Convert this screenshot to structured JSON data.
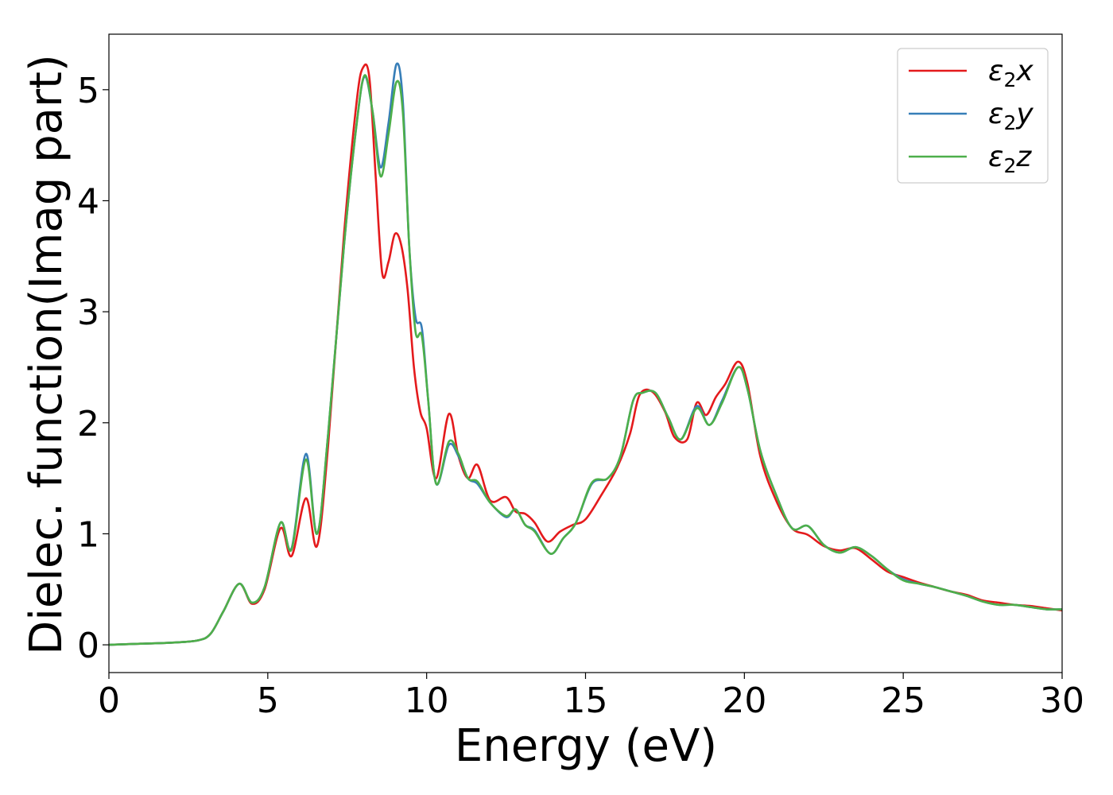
{
  "chart_data": {
    "type": "line",
    "xlabel": "Energy (eV)",
    "ylabel": "Dielec. function(Imag part)",
    "xlim": [
      0,
      30
    ],
    "ylim": [
      -0.25,
      5.5
    ],
    "xticks": [
      "0",
      "5",
      "10",
      "15",
      "20",
      "25",
      "30"
    ],
    "yticks": [
      "0",
      "1",
      "2",
      "3",
      "4",
      "5"
    ],
    "grid": false,
    "legend_position": "top-right",
    "legend_labels": [
      {
        "base": "ε",
        "sub": "2",
        "tail": "x"
      },
      {
        "base": "ε",
        "sub": "2",
        "tail": "y"
      },
      {
        "base": "ε",
        "sub": "2",
        "tail": "z"
      }
    ],
    "series": [
      {
        "name": "ε2x",
        "color": "#e41a1c",
        "x": [
          0,
          1,
          2,
          2.8,
          3.2,
          3.6,
          4.1,
          4.5,
          4.9,
          5.4,
          5.75,
          6.2,
          6.55,
          6.9,
          7.4,
          7.8,
          8.0,
          8.2,
          8.4,
          8.6,
          8.8,
          9.0,
          9.2,
          9.4,
          9.6,
          9.8,
          10.0,
          10.3,
          10.7,
          11.0,
          11.3,
          11.6,
          12.0,
          12.5,
          12.8,
          13.1,
          13.4,
          13.8,
          14.2,
          14.6,
          15.0,
          15.5,
          16.0,
          16.4,
          16.7,
          17.1,
          17.5,
          17.8,
          18.2,
          18.5,
          18.8,
          19.1,
          19.4,
          19.8,
          20.1,
          20.5,
          21.0,
          21.5,
          22.0,
          22.5,
          23.0,
          23.5,
          24.0,
          24.5,
          25.0,
          25.5,
          26.0,
          26.5,
          27.0,
          27.5,
          28.0,
          28.5,
          29.0,
          29.5,
          30.0
        ],
        "y": [
          0.0,
          0.01,
          0.02,
          0.04,
          0.1,
          0.3,
          0.55,
          0.37,
          0.5,
          1.05,
          0.8,
          1.32,
          0.89,
          1.8,
          3.7,
          4.9,
          5.2,
          5.1,
          4.2,
          3.35,
          3.45,
          3.7,
          3.6,
          3.2,
          2.5,
          2.1,
          1.95,
          1.5,
          2.08,
          1.7,
          1.5,
          1.62,
          1.3,
          1.33,
          1.2,
          1.18,
          1.1,
          0.93,
          1.02,
          1.08,
          1.13,
          1.35,
          1.6,
          1.9,
          2.25,
          2.28,
          2.1,
          1.87,
          1.85,
          2.18,
          2.07,
          2.23,
          2.35,
          2.55,
          2.35,
          1.7,
          1.3,
          1.05,
          0.99,
          0.89,
          0.85,
          0.87,
          0.77,
          0.66,
          0.61,
          0.56,
          0.52,
          0.48,
          0.45,
          0.4,
          0.38,
          0.36,
          0.35,
          0.33,
          0.31
        ]
      },
      {
        "name": "ε2y",
        "color": "#377eb8",
        "x": [
          0,
          1,
          2,
          2.8,
          3.2,
          3.6,
          4.1,
          4.5,
          4.9,
          5.4,
          5.75,
          6.2,
          6.55,
          6.9,
          7.4,
          7.8,
          8.05,
          8.3,
          8.55,
          8.8,
          9.05,
          9.25,
          9.45,
          9.65,
          9.85,
          10.05,
          10.3,
          10.7,
          11.0,
          11.3,
          11.6,
          12.0,
          12.5,
          12.8,
          13.1,
          13.4,
          13.9,
          14.3,
          14.7,
          15.2,
          15.7,
          16.1,
          16.5,
          16.8,
          17.2,
          17.6,
          18.0,
          18.5,
          18.9,
          19.3,
          19.8,
          20.1,
          20.5,
          21.0,
          21.5,
          22.0,
          22.5,
          23.0,
          23.5,
          24.0,
          24.5,
          25.0,
          25.5,
          26.0,
          26.5,
          27.0,
          27.5,
          28.0,
          28.5,
          29.0,
          29.5,
          30.0
        ],
        "y": [
          0.0,
          0.01,
          0.02,
          0.04,
          0.1,
          0.3,
          0.55,
          0.38,
          0.52,
          1.1,
          0.87,
          1.72,
          1.0,
          1.9,
          3.6,
          4.7,
          5.12,
          4.8,
          4.3,
          4.7,
          5.23,
          4.9,
          3.6,
          2.95,
          2.85,
          2.2,
          1.45,
          1.8,
          1.7,
          1.5,
          1.45,
          1.28,
          1.15,
          1.22,
          1.08,
          1.03,
          0.82,
          0.96,
          1.1,
          1.45,
          1.5,
          1.7,
          2.2,
          2.27,
          2.27,
          2.05,
          1.85,
          2.15,
          1.98,
          2.2,
          2.5,
          2.3,
          1.75,
          1.35,
          1.05,
          1.07,
          0.9,
          0.83,
          0.88,
          0.8,
          0.68,
          0.59,
          0.55,
          0.52,
          0.48,
          0.44,
          0.39,
          0.36,
          0.36,
          0.34,
          0.32,
          0.32
        ]
      },
      {
        "name": "ε2z",
        "color": "#4daf4a",
        "x": [
          0,
          1,
          2,
          2.8,
          3.2,
          3.6,
          4.1,
          4.5,
          4.9,
          5.4,
          5.75,
          6.2,
          6.55,
          6.9,
          7.4,
          7.8,
          8.05,
          8.3,
          8.55,
          8.8,
          9.05,
          9.25,
          9.45,
          9.65,
          9.85,
          10.05,
          10.3,
          10.7,
          11.0,
          11.3,
          11.6,
          12.0,
          12.5,
          12.8,
          13.1,
          13.4,
          13.9,
          14.3,
          14.7,
          15.2,
          15.7,
          16.1,
          16.5,
          16.8,
          17.2,
          17.6,
          18.0,
          18.5,
          18.9,
          19.3,
          19.8,
          20.1,
          20.5,
          21.0,
          21.5,
          22.0,
          22.5,
          23.0,
          23.5,
          24.0,
          24.5,
          25.0,
          25.5,
          26.0,
          26.5,
          27.0,
          27.5,
          28.0,
          28.5,
          29.0,
          29.5,
          30.0
        ],
        "y": [
          0.0,
          0.01,
          0.02,
          0.04,
          0.1,
          0.3,
          0.55,
          0.38,
          0.52,
          1.1,
          0.86,
          1.67,
          1.0,
          1.9,
          3.6,
          4.7,
          5.13,
          4.8,
          4.22,
          4.6,
          5.07,
          4.8,
          3.6,
          2.82,
          2.78,
          2.2,
          1.45,
          1.83,
          1.72,
          1.5,
          1.47,
          1.28,
          1.16,
          1.22,
          1.08,
          1.02,
          0.82,
          0.96,
          1.1,
          1.46,
          1.5,
          1.7,
          2.2,
          2.27,
          2.27,
          2.05,
          1.85,
          2.13,
          1.98,
          2.18,
          2.5,
          2.3,
          1.75,
          1.35,
          1.05,
          1.07,
          0.9,
          0.83,
          0.88,
          0.8,
          0.68,
          0.58,
          0.55,
          0.52,
          0.48,
          0.44,
          0.39,
          0.36,
          0.36,
          0.34,
          0.32,
          0.32
        ]
      }
    ]
  }
}
